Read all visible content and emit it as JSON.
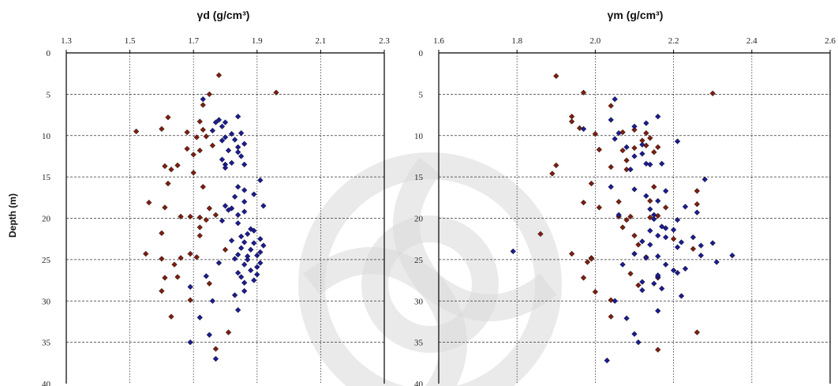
{
  "colors": {
    "series_a": "#7a1f10",
    "series_b": "#1c1c8e",
    "grid": "#333333",
    "frame": "#000000"
  },
  "chart_data": [
    {
      "type": "scatter",
      "title": "γd (g/cm³)",
      "ylabel": "Depth (m)",
      "xlim": [
        1.3,
        2.3
      ],
      "ylim": [
        0,
        40
      ],
      "y_inverted": true,
      "x_axis_position": "top",
      "x_ticks": [
        "1.3",
        "1.5",
        "1.7",
        "1.9",
        "2.1",
        "2.3"
      ],
      "y_ticks": [
        "0",
        "5",
        "10",
        "15",
        "20",
        "25",
        "30",
        "35",
        "40"
      ],
      "grid": true,
      "series": [
        {
          "color": "#7a1f10",
          "points": [
            [
              1.78,
              2.7
            ],
            [
              1.96,
              4.8
            ],
            [
              1.75,
              5.0
            ],
            [
              1.73,
              6.3
            ],
            [
              1.62,
              7.8
            ],
            [
              1.72,
              8.3
            ],
            [
              1.52,
              9.5
            ],
            [
              1.6,
              9.2
            ],
            [
              1.68,
              9.6
            ],
            [
              1.73,
              9.3
            ],
            [
              1.74,
              10.1
            ],
            [
              1.71,
              10.2
            ],
            [
              1.76,
              11.2
            ],
            [
              1.68,
              11.6
            ],
            [
              1.72,
              11.8
            ],
            [
              1.7,
              12.3
            ],
            [
              1.65,
              13.6
            ],
            [
              1.61,
              13.7
            ],
            [
              1.63,
              14.1
            ],
            [
              1.7,
              14.5
            ],
            [
              1.62,
              15.8
            ],
            [
              1.73,
              16.2
            ],
            [
              1.56,
              18.1
            ],
            [
              1.61,
              18.7
            ],
            [
              1.75,
              18.8
            ],
            [
              1.66,
              19.8
            ],
            [
              1.69,
              19.8
            ],
            [
              1.72,
              19.9
            ],
            [
              1.77,
              19.6
            ],
            [
              1.74,
              20.2
            ],
            [
              1.72,
              21.1
            ],
            [
              1.6,
              21.8
            ],
            [
              1.72,
              22.1
            ],
            [
              1.8,
              23.8
            ],
            [
              1.55,
              24.3
            ],
            [
              1.69,
              24.3
            ],
            [
              1.66,
              24.8
            ],
            [
              1.6,
              24.9
            ],
            [
              1.71,
              24.7
            ],
            [
              1.64,
              25.6
            ],
            [
              1.61,
              27.2
            ],
            [
              1.65,
              27.1
            ],
            [
              1.75,
              27.9
            ],
            [
              1.6,
              28.8
            ],
            [
              1.69,
              29.9
            ],
            [
              1.63,
              31.9
            ],
            [
              1.81,
              33.8
            ],
            [
              1.77,
              35.8
            ]
          ]
        },
        {
          "color": "#1c1c8e",
          "points": [
            [
              1.73,
              5.6
            ],
            [
              1.84,
              7.7
            ],
            [
              1.78,
              8.1
            ],
            [
              1.77,
              8.4
            ],
            [
              1.8,
              8.4
            ],
            [
              1.79,
              8.9
            ],
            [
              1.76,
              9.4
            ],
            [
              1.82,
              9.8
            ],
            [
              1.85,
              9.7
            ],
            [
              1.8,
              10.2
            ],
            [
              1.83,
              10.5
            ],
            [
              1.79,
              10.6
            ],
            [
              1.86,
              11.0
            ],
            [
              1.84,
              11.4
            ],
            [
              1.81,
              11.8
            ],
            [
              1.84,
              12.0
            ],
            [
              1.85,
              12.5
            ],
            [
              1.79,
              12.9
            ],
            [
              1.82,
              13.3
            ],
            [
              1.8,
              13.5
            ],
            [
              1.86,
              13.5
            ],
            [
              1.8,
              13.9
            ],
            [
              1.91,
              15.4
            ],
            [
              1.84,
              16.2
            ],
            [
              1.86,
              16.6
            ],
            [
              1.83,
              17.4
            ],
            [
              1.89,
              17.1
            ],
            [
              1.86,
              18.0
            ],
            [
              1.8,
              18.5
            ],
            [
              1.92,
              18.5
            ],
            [
              1.82,
              18.8
            ],
            [
              1.81,
              19.0
            ],
            [
              1.86,
              19.2
            ],
            [
              1.84,
              19.6
            ],
            [
              1.79,
              20.3
            ],
            [
              1.84,
              20.6
            ],
            [
              1.88,
              21.3
            ],
            [
              1.87,
              21.9
            ],
            [
              1.89,
              21.5
            ],
            [
              1.85,
              22.2
            ],
            [
              1.91,
              22.5
            ],
            [
              1.82,
              22.7
            ],
            [
              1.86,
              22.9
            ],
            [
              1.89,
              23.0
            ],
            [
              1.92,
              23.3
            ],
            [
              1.85,
              23.6
            ],
            [
              1.88,
              23.8
            ],
            [
              1.91,
              24.1
            ],
            [
              1.84,
              24.4
            ],
            [
              1.87,
              24.6
            ],
            [
              1.9,
              24.5
            ],
            [
              1.83,
              24.9
            ],
            [
              1.87,
              25.0
            ],
            [
              1.91,
              25.4
            ],
            [
              1.86,
              25.6
            ],
            [
              1.78,
              25.4
            ],
            [
              1.9,
              25.9
            ],
            [
              1.88,
              26.3
            ],
            [
              1.84,
              26.6
            ],
            [
              1.9,
              26.8
            ],
            [
              1.85,
              27.1
            ],
            [
              1.74,
              27.0
            ],
            [
              1.89,
              27.5
            ],
            [
              1.86,
              27.8
            ],
            [
              1.69,
              28.3
            ],
            [
              1.86,
              28.8
            ],
            [
              1.83,
              29.3
            ],
            [
              1.76,
              30.0
            ],
            [
              1.84,
              31.1
            ],
            [
              1.72,
              32.0
            ],
            [
              1.75,
              34.1
            ],
            [
              1.69,
              35.0
            ],
            [
              1.77,
              37.0
            ]
          ]
        }
      ]
    },
    {
      "type": "scatter",
      "title": "γm (g/cm³)",
      "ylabel": "",
      "xlim": [
        1.6,
        2.6
      ],
      "ylim": [
        0,
        40
      ],
      "y_inverted": true,
      "x_axis_position": "top",
      "x_ticks": [
        "1.6",
        "1.8",
        "2.0",
        "2.2",
        "2.4",
        "2.6"
      ],
      "y_ticks": [
        "0",
        "5",
        "10",
        "15",
        "20",
        "25",
        "30",
        "35",
        "40"
      ],
      "grid": true,
      "series": [
        {
          "color": "#7a1f10",
          "points": [
            [
              1.9,
              2.8
            ],
            [
              1.97,
              4.8
            ],
            [
              2.3,
              4.9
            ],
            [
              2.04,
              6.4
            ],
            [
              1.94,
              7.7
            ],
            [
              1.94,
              8.3
            ],
            [
              1.96,
              9.1
            ],
            [
              2.1,
              9.3
            ],
            [
              2.07,
              9.6
            ],
            [
              2.13,
              9.7
            ],
            [
              2.0,
              9.8
            ],
            [
              2.14,
              10.3
            ],
            [
              2.12,
              10.6
            ],
            [
              2.13,
              11.2
            ],
            [
              2.16,
              11.4
            ],
            [
              2.1,
              11.5
            ],
            [
              2.01,
              11.7
            ],
            [
              2.07,
              11.8
            ],
            [
              2.15,
              12.0
            ],
            [
              2.08,
              13.0
            ],
            [
              1.9,
              13.6
            ],
            [
              2.04,
              13.8
            ],
            [
              2.08,
              14.1
            ],
            [
              1.89,
              14.6
            ],
            [
              1.99,
              15.8
            ],
            [
              2.15,
              16.2
            ],
            [
              2.26,
              16.7
            ],
            [
              1.97,
              18.1
            ],
            [
              2.06,
              18.0
            ],
            [
              2.14,
              17.9
            ],
            [
              2.01,
              18.7
            ],
            [
              2.18,
              18.7
            ],
            [
              2.26,
              18.3
            ],
            [
              2.09,
              19.8
            ],
            [
              2.14,
              19.9
            ],
            [
              2.16,
              19.7
            ],
            [
              2.06,
              19.8
            ],
            [
              2.08,
              20.2
            ],
            [
              2.07,
              21.1
            ],
            [
              1.86,
              21.9
            ],
            [
              2.1,
              22.1
            ],
            [
              2.2,
              22.5
            ],
            [
              2.11,
              23.2
            ],
            [
              2.25,
              23.7
            ],
            [
              1.94,
              24.3
            ],
            [
              2.1,
              24.3
            ],
            [
              2.13,
              24.7
            ],
            [
              1.99,
              24.8
            ],
            [
              1.98,
              25.3
            ],
            [
              1.99,
              24.9
            ],
            [
              2.09,
              26.7
            ],
            [
              1.97,
              27.2
            ],
            [
              2.11,
              28.1
            ],
            [
              2.16,
              27.2
            ],
            [
              2.0,
              28.9
            ],
            [
              2.04,
              29.9
            ],
            [
              2.04,
              31.9
            ],
            [
              2.26,
              33.8
            ],
            [
              2.16,
              35.9
            ]
          ]
        },
        {
          "color": "#1c1c8e",
          "points": [
            [
              2.05,
              5.6
            ],
            [
              2.16,
              7.7
            ],
            [
              2.04,
              8.1
            ],
            [
              2.13,
              8.5
            ],
            [
              2.1,
              8.9
            ],
            [
              1.97,
              9.2
            ],
            [
              2.06,
              9.7
            ],
            [
              2.05,
              10.4
            ],
            [
              2.21,
              10.7
            ],
            [
              2.12,
              11.1
            ],
            [
              2.08,
              11.4
            ],
            [
              2.12,
              12.2
            ],
            [
              2.1,
              12.5
            ],
            [
              2.13,
              13.4
            ],
            [
              2.14,
              13.5
            ],
            [
              2.17,
              13.4
            ],
            [
              2.09,
              14.1
            ],
            [
              2.28,
              15.3
            ],
            [
              2.1,
              16.5
            ],
            [
              2.04,
              16.2
            ],
            [
              2.18,
              16.7
            ],
            [
              2.13,
              17.3
            ],
            [
              2.16,
              17.9
            ],
            [
              2.23,
              18.6
            ],
            [
              2.14,
              18.9
            ],
            [
              2.26,
              19.3
            ],
            [
              2.15,
              19.6
            ],
            [
              2.06,
              19.6
            ],
            [
              2.15,
              20.1
            ],
            [
              2.21,
              20.2
            ],
            [
              2.17,
              21.0
            ],
            [
              2.2,
              21.4
            ],
            [
              2.18,
              21.2
            ],
            [
              2.14,
              21.5
            ],
            [
              2.25,
              22.3
            ],
            [
              2.16,
              22.1
            ],
            [
              2.18,
              22.3
            ],
            [
              2.12,
              22.8
            ],
            [
              2.22,
              22.9
            ],
            [
              2.3,
              23.0
            ],
            [
              2.14,
              23.2
            ],
            [
              2.27,
              23.3
            ],
            [
              2.21,
              23.5
            ],
            [
              2.1,
              24.3
            ],
            [
              2.16,
              24.6
            ],
            [
              2.27,
              24.5
            ],
            [
              2.35,
              24.5
            ],
            [
              2.13,
              24.8
            ],
            [
              2.31,
              25.3
            ],
            [
              2.18,
              25.6
            ],
            [
              2.07,
              25.6
            ],
            [
              2.23,
              26.1
            ],
            [
              2.2,
              26.3
            ],
            [
              2.21,
              26.6
            ],
            [
              2.16,
              27.1
            ],
            [
              1.79,
              24.0
            ],
            [
              2.16,
              26.9
            ],
            [
              2.12,
              27.7
            ],
            [
              2.15,
              27.9
            ],
            [
              2.17,
              28.5
            ],
            [
              2.12,
              28.7
            ],
            [
              2.22,
              29.4
            ],
            [
              2.05,
              30.0
            ],
            [
              2.08,
              32.1
            ],
            [
              2.16,
              31.2
            ],
            [
              2.1,
              34.0
            ],
            [
              2.11,
              35.0
            ],
            [
              2.03,
              37.2
            ]
          ]
        }
      ]
    }
  ]
}
